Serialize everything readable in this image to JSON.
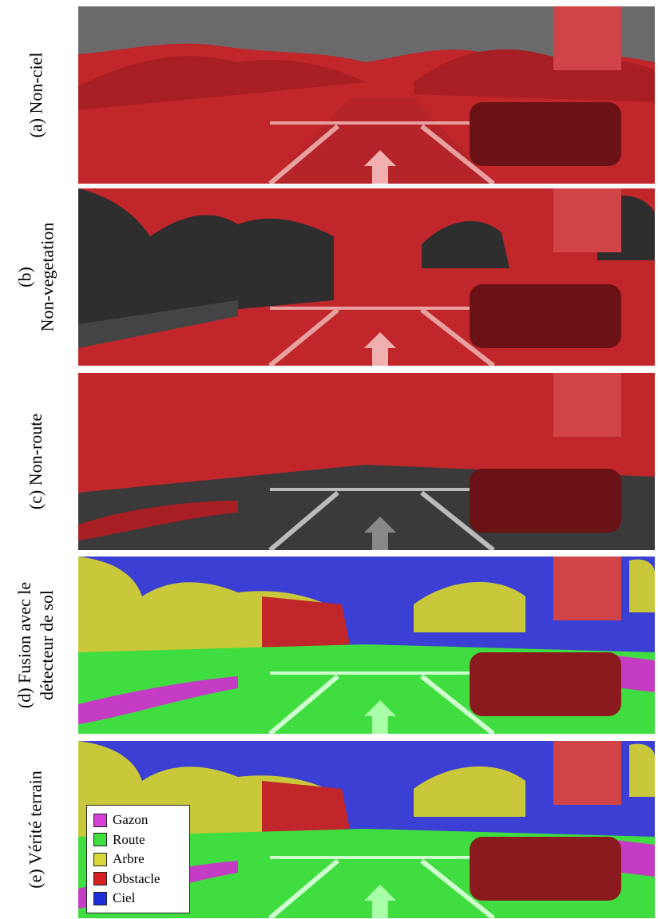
{
  "rows": [
    {
      "id": "a",
      "label_lines": [
        "(a) Non-ciel"
      ]
    },
    {
      "id": "b",
      "label_lines": [
        "(b)",
        "Non-vegetation"
      ]
    },
    {
      "id": "c",
      "label_lines": [
        "(c) Non-route"
      ]
    },
    {
      "id": "d",
      "label_lines": [
        "(d) Fusion avec le",
        "détecteur de sol"
      ]
    },
    {
      "id": "e",
      "label_lines": [
        "(e) Vérité terrain"
      ]
    }
  ],
  "legend": {
    "items": [
      {
        "label": "Gazon",
        "color": "#d63fd6"
      },
      {
        "label": "Route",
        "color": "#3de03d"
      },
      {
        "label": "Arbre",
        "color": "#d8d83a"
      },
      {
        "label": "Obstacle",
        "color": "#d42020"
      },
      {
        "label": "Ciel",
        "color": "#1f2fd8"
      }
    ]
  },
  "colors": {
    "overlay_red": "#c0262a",
    "sky_blue": "#3b3fd4",
    "road_green": "#3fdd3f",
    "tree_yellow": "#c9c83a",
    "grass_magenta": "#c43cc4",
    "gray_dark": "#2e2e2e",
    "gray_light": "#8a8a8a"
  },
  "icons": [
    "road-arrow-icon",
    "car-icon",
    "traffic-sign-icon"
  ]
}
